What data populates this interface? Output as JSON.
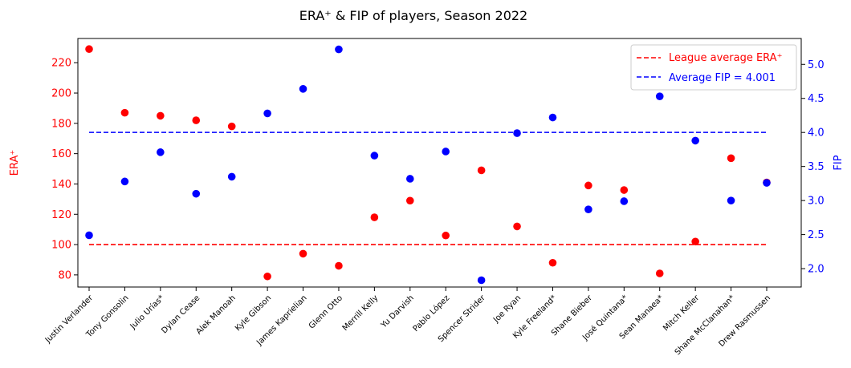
{
  "chart_data": {
    "type": "scatter",
    "title": "ERA⁺ & FIP of players, Season 2022",
    "categories": [
      "Justin Verlander",
      "Tony Gonsolin",
      "Julio Urías*",
      "Dylan Cease",
      "Alek Manoah",
      "Kyle Gibson",
      "James Kaprielian",
      "Glenn Otto",
      "Merrill Kelly",
      "Yu Darvish",
      "Pablo López",
      "Spencer Strider",
      "Joe Ryan",
      "Kyle Freeland*",
      "Shane Bieber",
      "José Quintana*",
      "Sean Manaea*",
      "Mitch Keller",
      "Shane McClanahan*",
      "Drew Rasmussen"
    ],
    "y_left": {
      "label": "ERA⁺",
      "color": "#ff0000",
      "ylim": [
        72,
        236
      ],
      "ticks": [
        80,
        100,
        120,
        140,
        160,
        180,
        200,
        220
      ]
    },
    "y_right": {
      "label": "FIP",
      "color": "#0000ff",
      "ylim": [
        1.73,
        5.38
      ],
      "ticks": [
        "2.0",
        "2.5",
        "3.0",
        "3.5",
        "4.0",
        "4.5",
        "5.0"
      ]
    },
    "series": [
      {
        "name": "ERA⁺",
        "axis": "left",
        "color": "#ff0000",
        "values": [
          229,
          187,
          185,
          182,
          178,
          79,
          94,
          86,
          118,
          129,
          106,
          149,
          112,
          88,
          139,
          136,
          81,
          102,
          157,
          141
        ]
      },
      {
        "name": "FIP",
        "axis": "right",
        "color": "#0000ff",
        "values": [
          2.49,
          3.28,
          3.71,
          3.1,
          3.35,
          4.28,
          4.64,
          5.22,
          3.66,
          3.32,
          3.72,
          1.83,
          3.99,
          4.22,
          2.87,
          2.99,
          4.53,
          3.88,
          3.0,
          3.26
        ]
      }
    ],
    "reference_lines": [
      {
        "name": "League average ERA⁺",
        "axis": "left",
        "value": 100,
        "color": "#ff0000",
        "style": "dashed"
      },
      {
        "name": "Average FIP = 4.001",
        "axis": "right",
        "value": 4.001,
        "color": "#0000ff",
        "style": "dashed"
      }
    ],
    "legend_position": "top-right",
    "grid": false
  }
}
